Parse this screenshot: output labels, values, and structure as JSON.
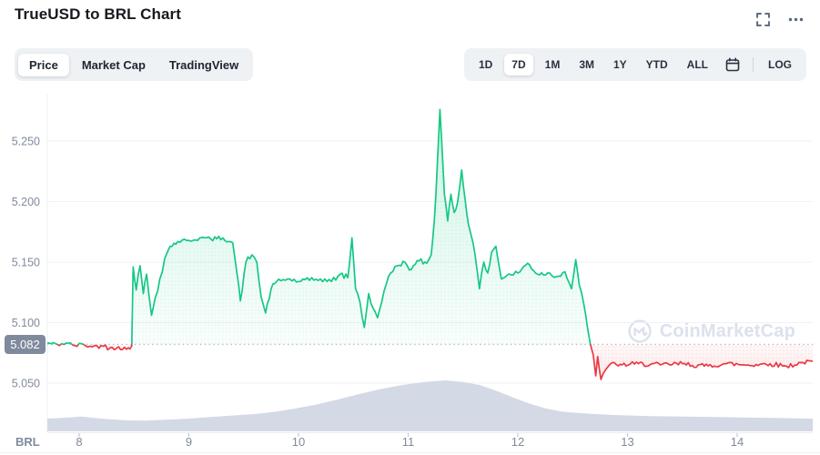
{
  "header": {
    "title": "TrueUSD to BRL Chart",
    "icons": [
      {
        "name": "fullscreen-icon"
      },
      {
        "name": "more-options-icon"
      }
    ]
  },
  "toolbar": {
    "tabs": [
      {
        "label": "Price",
        "active": true
      },
      {
        "label": "Market Cap",
        "active": false
      },
      {
        "label": "TradingView",
        "active": false
      }
    ],
    "ranges": [
      {
        "label": "1D",
        "active": false
      },
      {
        "label": "7D",
        "active": true
      },
      {
        "label": "1M",
        "active": false
      },
      {
        "label": "3M",
        "active": false
      },
      {
        "label": "1Y",
        "active": false
      },
      {
        "label": "YTD",
        "active": false
      },
      {
        "label": "ALL",
        "active": false
      },
      {
        "type": "calendar-icon"
      },
      {
        "type": "divider"
      },
      {
        "label": "LOG",
        "active": false
      }
    ]
  },
  "chart_data": {
    "type": "line",
    "title": "TrueUSD to BRL Chart",
    "subtype": "baseline-area-with-volume",
    "unit_label": "BRL",
    "current_price_label": "5.082",
    "baseline_value": 5.082,
    "watermark": "CoinMarketCap",
    "xlabel": "",
    "ylabel": "",
    "x_axis": {
      "tick_labels": [
        "8",
        "9",
        "10",
        "11",
        "12",
        "13",
        "14"
      ],
      "tick_values": [
        8,
        9,
        10,
        11,
        12,
        13,
        14
      ],
      "range": [
        7.71,
        14.69
      ]
    },
    "y_axis": {
      "tick_labels": [
        "5.250",
        "5.200",
        "5.150",
        "5.100",
        "5.050"
      ],
      "tick_values": [
        5.25,
        5.2,
        5.15,
        5.1,
        5.05
      ],
      "range": [
        5.01,
        5.29
      ]
    },
    "grid": "horizontal",
    "legend": "none",
    "colors": {
      "up": "#16c784",
      "down": "#ea3943",
      "up_fill": "rgba(22,199,132,0.16)",
      "down_fill": "rgba(234,57,67,0.10)",
      "volume_fill": "#d3d9e5",
      "baseline_dotted": "#b2bac9",
      "grid_line": "#eff2f5",
      "axis_text": "#808a9d",
      "badge_bg": "#808a9d"
    },
    "price_anchors_day_price_noise": [
      [
        7.71,
        5.083,
        0.0015
      ],
      [
        7.8,
        5.082,
        0.0018
      ],
      [
        7.88,
        5.083,
        0.0018
      ],
      [
        7.96,
        5.081,
        0.0018
      ],
      [
        8.04,
        5.082,
        0.002
      ],
      [
        8.12,
        5.08,
        0.002
      ],
      [
        8.2,
        5.081,
        0.0022
      ],
      [
        8.28,
        5.079,
        0.002
      ],
      [
        8.36,
        5.08,
        0.002
      ],
      [
        8.43,
        5.078,
        0.0018
      ],
      [
        8.48,
        5.081,
        0.001
      ],
      [
        8.492,
        5.146,
        0.0015
      ],
      [
        8.52,
        5.127,
        0.0035
      ],
      [
        8.555,
        5.147,
        0.003
      ],
      [
        8.585,
        5.124,
        0.003
      ],
      [
        8.615,
        5.14,
        0.003
      ],
      [
        8.66,
        5.106,
        0.003
      ],
      [
        8.695,
        5.121,
        0.0028
      ],
      [
        8.735,
        5.136,
        0.0028
      ],
      [
        8.78,
        5.153,
        0.0025
      ],
      [
        8.83,
        5.163,
        0.002
      ],
      [
        8.9,
        5.167,
        0.0018
      ],
      [
        9.0,
        5.168,
        0.002
      ],
      [
        9.1,
        5.17,
        0.0018
      ],
      [
        9.2,
        5.169,
        0.0018
      ],
      [
        9.31,
        5.17,
        0.0018
      ],
      [
        9.4,
        5.166,
        0.0015
      ],
      [
        9.44,
        5.14,
        0.0025
      ],
      [
        9.47,
        5.118,
        0.0025
      ],
      [
        9.52,
        5.15,
        0.0025
      ],
      [
        9.575,
        5.156,
        0.002
      ],
      [
        9.62,
        5.15,
        0.002
      ],
      [
        9.66,
        5.121,
        0.0025
      ],
      [
        9.7,
        5.108,
        0.0022
      ],
      [
        9.75,
        5.128,
        0.002
      ],
      [
        9.8,
        5.134,
        0.0018
      ],
      [
        9.9,
        5.136,
        0.0022
      ],
      [
        10.0,
        5.134,
        0.0022
      ],
      [
        10.1,
        5.135,
        0.0025
      ],
      [
        10.2,
        5.136,
        0.0022
      ],
      [
        10.3,
        5.134,
        0.0022
      ],
      [
        10.38,
        5.14,
        0.0025
      ],
      [
        10.45,
        5.137,
        0.0018
      ],
      [
        10.487,
        5.17,
        0.0012
      ],
      [
        10.52,
        5.128,
        0.0028
      ],
      [
        10.56,
        5.117,
        0.0028
      ],
      [
        10.6,
        5.096,
        0.0018
      ],
      [
        10.64,
        5.124,
        0.0026
      ],
      [
        10.68,
        5.112,
        0.0026
      ],
      [
        10.72,
        5.104,
        0.0018
      ],
      [
        10.78,
        5.126,
        0.0026
      ],
      [
        10.84,
        5.141,
        0.0024
      ],
      [
        10.9,
        5.147,
        0.002
      ],
      [
        10.97,
        5.15,
        0.0026
      ],
      [
        11.03,
        5.144,
        0.0026
      ],
      [
        11.1,
        5.151,
        0.0026
      ],
      [
        11.17,
        5.149,
        0.0018
      ],
      [
        11.21,
        5.156,
        0.0018
      ],
      [
        11.24,
        5.186,
        0.003
      ],
      [
        11.268,
        5.235,
        0.0035
      ],
      [
        11.29,
        5.276,
        0.001
      ],
      [
        11.31,
        5.242,
        0.0035
      ],
      [
        11.33,
        5.206,
        0.0035
      ],
      [
        11.36,
        5.184,
        0.0035
      ],
      [
        11.39,
        5.206,
        0.0028
      ],
      [
        11.42,
        5.191,
        0.0032
      ],
      [
        11.45,
        5.199,
        0.0028
      ],
      [
        11.488,
        5.226,
        0.001
      ],
      [
        11.52,
        5.201,
        0.0028
      ],
      [
        11.55,
        5.181,
        0.0028
      ],
      [
        11.572,
        5.173,
        0.0018
      ],
      [
        11.61,
        5.156,
        0.0026
      ],
      [
        11.65,
        5.128,
        0.0018
      ],
      [
        11.69,
        5.15,
        0.0026
      ],
      [
        11.725,
        5.141,
        0.0024
      ],
      [
        11.76,
        5.158,
        0.0018
      ],
      [
        11.8,
        5.163,
        0.0016
      ],
      [
        11.85,
        5.136,
        0.0024
      ],
      [
        11.9,
        5.139,
        0.0022
      ],
      [
        12.0,
        5.141,
        0.0022
      ],
      [
        12.09,
        5.149,
        0.0022
      ],
      [
        12.18,
        5.14,
        0.0022
      ],
      [
        12.27,
        5.141,
        0.0018
      ],
      [
        12.35,
        5.138,
        0.0018
      ],
      [
        12.43,
        5.142,
        0.0018
      ],
      [
        12.49,
        5.128,
        0.0018
      ],
      [
        12.528,
        5.152,
        0.001
      ],
      [
        12.56,
        5.131,
        0.0018
      ],
      [
        12.6,
        5.116,
        0.0018
      ],
      [
        12.635,
        5.096,
        0.0016
      ],
      [
        12.66,
        5.083,
        0.001
      ],
      [
        12.688,
        5.073,
        0.0016
      ],
      [
        12.71,
        5.056,
        0.0014
      ],
      [
        12.728,
        5.072,
        0.001
      ],
      [
        12.758,
        5.053,
        0.0014
      ],
      [
        12.8,
        5.061,
        0.0016
      ],
      [
        12.845,
        5.066,
        0.0016
      ],
      [
        12.95,
        5.065,
        0.002
      ],
      [
        13.1,
        5.066,
        0.002
      ],
      [
        13.3,
        5.065,
        0.002
      ],
      [
        13.5,
        5.066,
        0.002
      ],
      [
        13.7,
        5.064,
        0.002
      ],
      [
        13.9,
        5.066,
        0.002
      ],
      [
        14.1,
        5.065,
        0.002
      ],
      [
        14.3,
        5.066,
        0.002
      ],
      [
        14.45,
        5.064,
        0.002
      ],
      [
        14.6,
        5.067,
        0.0016
      ],
      [
        14.69,
        5.068,
        0.001
      ]
    ],
    "volume_day_relative": [
      [
        7.71,
        0.25
      ],
      [
        7.9,
        0.27
      ],
      [
        8.02,
        0.29
      ],
      [
        8.2,
        0.25
      ],
      [
        8.4,
        0.22
      ],
      [
        8.6,
        0.21
      ],
      [
        8.8,
        0.23
      ],
      [
        9.0,
        0.25
      ],
      [
        9.2,
        0.28
      ],
      [
        9.4,
        0.31
      ],
      [
        9.6,
        0.34
      ],
      [
        9.77,
        0.38
      ],
      [
        9.95,
        0.44
      ],
      [
        10.15,
        0.52
      ],
      [
        10.35,
        0.62
      ],
      [
        10.55,
        0.73
      ],
      [
        10.75,
        0.83
      ],
      [
        10.95,
        0.91
      ],
      [
        11.15,
        0.97
      ],
      [
        11.34,
        1.0
      ],
      [
        11.5,
        0.97
      ],
      [
        11.65,
        0.91
      ],
      [
        11.8,
        0.8
      ],
      [
        11.95,
        0.67
      ],
      [
        12.1,
        0.55
      ],
      [
        12.25,
        0.45
      ],
      [
        12.4,
        0.39
      ],
      [
        12.55,
        0.36
      ],
      [
        12.7,
        0.34
      ],
      [
        12.9,
        0.32
      ],
      [
        13.2,
        0.3
      ],
      [
        13.5,
        0.29
      ],
      [
        13.8,
        0.28
      ],
      [
        14.1,
        0.27
      ],
      [
        14.4,
        0.26
      ],
      [
        14.69,
        0.25
      ]
    ]
  }
}
